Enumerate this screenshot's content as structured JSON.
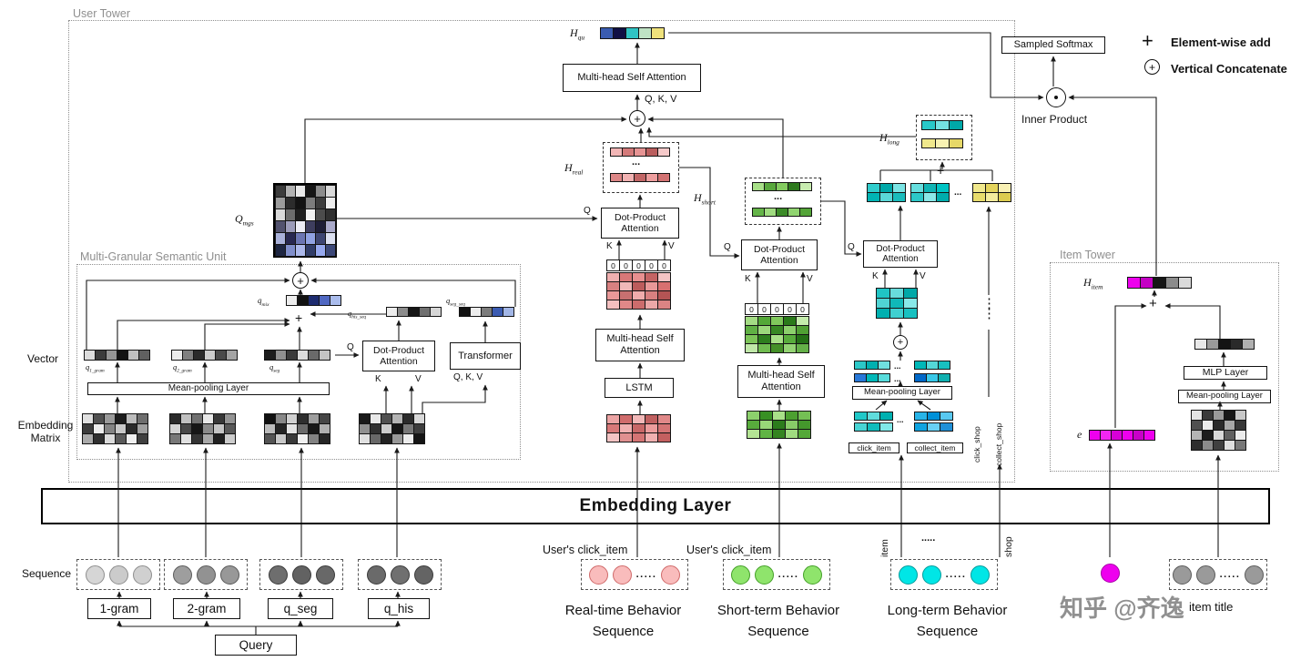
{
  "watermark": "知乎 @齐逸",
  "legend": {
    "plus": "+",
    "oplus": "+",
    "element_wise_add": "Element-wise add",
    "vertical_concatenate": "Vertical Concatenate",
    "sampled_softmax": "Sampled Softmax",
    "inner_product": "Inner Product"
  },
  "towers": {
    "user": "User Tower",
    "item": "Item Tower",
    "mgs": "Multi-Granular Semantic Unit"
  },
  "embedding_layer": "Embedding Layer",
  "side": {
    "vector": "Vector",
    "embedding": "Embedding",
    "matrix": "Matrix",
    "sequence": "Sequence"
  },
  "letters": {
    "q": "Q",
    "k": "K",
    "v": "V",
    "qkv": "Q, K, V"
  },
  "boxes": {
    "dpa": "Dot-Product Attention",
    "msa": "Multi-head Self Attention",
    "mp": "Mean-pooling Layer",
    "lstm": "LSTM",
    "transformer": "Transformer",
    "mlp": "MLP Layer"
  },
  "dots": {
    "h3": "...",
    "h5": ".....",
    "v": "⋮",
    "v2": "⋮\n⋮"
  },
  "zeros": [
    [
      {
        "t": "0"
      },
      {
        "t": "0"
      },
      {
        "t": "0"
      },
      {
        "t": "0"
      },
      {
        "t": "0"
      }
    ]
  ],
  "shared": {
    "users_click_item": "User's click_item"
  },
  "top": {
    "h_qu": {
      "m": "H",
      "s": "qu"
    },
    "cells": [
      [
        "#3a5cb0",
        "#101044",
        "#30c4c4",
        "#bfe2c4",
        "#efe27c"
      ]
    ]
  },
  "mgs": {
    "q_mgs": {
      "m": "Q",
      "s": "mgs"
    },
    "q_mix": {
      "m": "q",
      "s": "mix"
    },
    "q_his_seq": {
      "m": "q",
      "s": "his_seq"
    },
    "q_seg_seq": {
      "m": "q",
      "s": "seg_seq"
    },
    "q_1_gram": {
      "m": "q",
      "s": "1_gram"
    },
    "q_2_gram": {
      "m": "q",
      "s": "2_gram"
    },
    "q_seg_lbl": {
      "m": "q",
      "s": "seg"
    },
    "q_mgs_cells": [
      [
        "#3c3c3c",
        "#b2b2b2",
        "#e9e9e9",
        "#161616",
        "#8c8c8c",
        "#dadada"
      ],
      [
        "#9c9c9c",
        "#2c2c2c",
        "#121212",
        "#7c7c7c",
        "#3c3c3c",
        "#eeeeee"
      ],
      [
        "#dadada",
        "#6c6c6c",
        "#1e1e1e",
        "#f1f1f1",
        "#4c4c4c",
        "#303030"
      ],
      [
        "#52526e",
        "#9c9cba",
        "#ededf5",
        "#3e3e5e",
        "#1e1e36",
        "#aaaaca"
      ],
      [
        "#aab2da",
        "#282850",
        "#6c76b2",
        "#90a2e2",
        "#3e4672",
        "#dde1f1"
      ],
      [
        "#1e2642",
        "#808eca",
        "#acb8ea",
        "#303c68",
        "#96a8ee",
        "#3c4878"
      ]
    ],
    "qmix_cells": [
      [
        "#ededed",
        "#121212",
        "#1e2c70",
        "#5068c2",
        "#aabcec"
      ]
    ],
    "qhis_seq_cells": [
      [
        "#ededed",
        "#8c8c8c",
        "#161616",
        "#707070",
        "#d6d6d6"
      ]
    ],
    "qseg_seq_cells": [
      [
        "#121212",
        "#ededed",
        "#7c7c7c",
        "#3c5cb2",
        "#a2b6e6"
      ]
    ],
    "q1_cells": [
      [
        "#dcdcdc",
        "#3c3c3c",
        "#969696",
        "#141414",
        "#c0c0c0",
        "#606060"
      ]
    ],
    "q2_cells": [
      [
        "#ececec",
        "#808080",
        "#2a2a2a",
        "#cccccc",
        "#4a4a4a",
        "#a4a4a4"
      ]
    ],
    "qseg_cells": [
      [
        "#1c1c1c",
        "#909090",
        "#3a3a3a",
        "#dcdcdc",
        "#6a6a6a",
        "#c4c4c4"
      ]
    ],
    "m1": [
      [
        "#e0e0e0",
        "#505050",
        "#9a9a9a",
        "#1c1c1c",
        "#bcbcbc",
        "#6e6e6e"
      ],
      [
        "#3c3c3c",
        "#ececec",
        "#848484",
        "#c8c8c8",
        "#2a2a2a",
        "#a0a0a0"
      ],
      [
        "#aaaaaa",
        "#303030",
        "#dcdcdc",
        "#5a5a5a",
        "#f0f0f0",
        "#404040"
      ]
    ],
    "m2": [
      [
        "#2a2a2a",
        "#c0c0c0",
        "#707070",
        "#e8e8e8",
        "#383838",
        "#949494"
      ],
      [
        "#d4d4d4",
        "#484848",
        "#161616",
        "#8a8a8a",
        "#c4c4c4",
        "#585858"
      ],
      [
        "#787878",
        "#e0e0e0",
        "#343434",
        "#a8a8a8",
        "#202020",
        "#cccccc"
      ]
    ],
    "m3": [
      [
        "#111111",
        "#888888",
        "#d0d0d0",
        "#2e2e2e",
        "#9e9e9e",
        "#464646"
      ],
      [
        "#bcbcbc",
        "#242424",
        "#e4e4e4",
        "#6a6a6a",
        "#181818",
        "#b0b0b0"
      ],
      [
        "#545454",
        "#c8c8c8",
        "#3a3a3a",
        "#f0f0f0",
        "#828282",
        "#262626"
      ]
    ],
    "m4": [
      [
        "#1a1a1a",
        "#e8e8e8",
        "#505050",
        "#b4b4b4",
        "#2c2c2c",
        "#d8d8d8"
      ],
      [
        "#909090",
        "#303030",
        "#cccccc",
        "#161616",
        "#787878",
        "#3e3e3e"
      ],
      [
        "#e0e0e0",
        "#686868",
        "#222222",
        "#989898",
        "#ececec",
        "#141414"
      ]
    ]
  },
  "real": {
    "h": {
      "m": "H",
      "s": "real"
    },
    "cap1": "Real-time Behavior",
    "cap2": "Sequence",
    "h1": [
      [
        "#f2b6b6",
        "#d47a7a",
        "#e69494",
        "#ba5e5e",
        "#f6caca"
      ]
    ],
    "h2": [
      [
        "#dc8686",
        "#f2b2b2",
        "#c26666",
        "#ee9e9e",
        "#d27272"
      ]
    ],
    "m_top": [
      [
        "#f0b0b0",
        "#d87878",
        "#e89090",
        "#c46464",
        "#f4c4c4"
      ],
      [
        "#d88080",
        "#f0b8b8",
        "#bc5c5c",
        "#e89898",
        "#d87070"
      ],
      [
        "#e89898",
        "#c87070",
        "#f0acac",
        "#d88080",
        "#b45454"
      ],
      [
        "#f4c0c0",
        "#e08888",
        "#cc6c6c",
        "#eca8a8",
        "#dc8484"
      ]
    ],
    "m_bottom": [
      [
        "#eca4a4",
        "#d06c6c",
        "#f2b8b8",
        "#c06060",
        "#e08888"
      ],
      [
        "#d87878",
        "#f0b0b0",
        "#c86868",
        "#ec9c9c",
        "#d47474"
      ],
      [
        "#f4c4c4",
        "#e09090",
        "#d47474",
        "#f0b0b0",
        "#c46060"
      ]
    ],
    "circ": {
      "border": "#d06a6a",
      "items": [
        "#f9bcbc",
        "#f9bcbc",
        "dots",
        "#f9bcbc"
      ]
    }
  },
  "short": {
    "h": {
      "m": "H",
      "s": "short"
    },
    "cap1": "Short-term Behavior",
    "cap2": "Sequence",
    "h1": [
      [
        "#a8e088",
        "#58a83c",
        "#84cc60",
        "#2e7a1e",
        "#c8ecb0"
      ]
    ],
    "h2": [
      [
        "#64b448",
        "#a0dc80",
        "#3c8c28",
        "#90d470",
        "#54a438"
      ]
    ],
    "m_top": [
      [
        "#a4dc84",
        "#54a838",
        "#80c85c",
        "#2a7a1a",
        "#c4ecac"
      ],
      [
        "#60b044",
        "#9cd87c",
        "#388824",
        "#8cd06c",
        "#50a034"
      ],
      [
        "#7cc458",
        "#2e7e1e",
        "#a8e088",
        "#58ac3c",
        "#247016"
      ],
      [
        "#c0e8a8",
        "#70bc50",
        "#449028",
        "#94d474",
        "#64b048"
      ]
    ],
    "m_bottom": [
      [
        "#8cd06c",
        "#389024",
        "#a8e088",
        "#4ca030",
        "#74c054"
      ],
      [
        "#58ac3c",
        "#98d878",
        "#2c7c1c",
        "#88cc68",
        "#44982c"
      ],
      [
        "#b4e494",
        "#60b444",
        "#348420",
        "#a0dc80",
        "#54a838"
      ]
    ],
    "circ": {
      "border": "#44a028",
      "items": [
        "#8fe46c",
        "#8fe46c",
        "dots",
        "#8fe46c"
      ]
    }
  },
  "long": {
    "h": {
      "m": "H",
      "s": "long"
    },
    "cap1": "Long-term Behavior",
    "cap2": "Sequence",
    "click_item": "click_item",
    "collect_item": "collect_item",
    "click_shop": "click_shop",
    "collect_shop": "collect_shop",
    "item_rot": "item",
    "shop_rot": "shop",
    "h_cyan": [
      [
        "#28c8c8",
        "#74e2e2",
        "#00a8a8"
      ]
    ],
    "h_yellow": [
      [
        "#f0e88c",
        "#f8f2b2",
        "#e6d868"
      ]
    ],
    "pairA": [
      [
        "#30cccc",
        "#00a8a8",
        "#7ae4e4"
      ],
      [
        "#00b4b4",
        "#5ad8d8",
        "#1abcbc"
      ]
    ],
    "pairB": [
      [
        "#66dede",
        "#10b4b4",
        "#00c4c4"
      ],
      [
        "#2cc8c8",
        "#8ae8e8",
        "#00acac"
      ]
    ],
    "yellow2": [
      [
        "#f0e88c",
        "#e4d45c",
        "#f8f0b4"
      ],
      [
        "#e8dc6c",
        "#f4ec9c",
        "#dccc50"
      ]
    ],
    "m": [
      [
        "#20c4c4",
        "#68dcdc",
        "#00a8a8"
      ],
      [
        "#50d4d4",
        "#10b8b8",
        "#88e8e8"
      ],
      [
        "#00b0b0",
        "#40d0d0",
        "#18c0c0"
      ]
    ],
    "r1l": [
      [
        "#2cc8c8",
        "#00b0b0",
        "#70e0e0"
      ]
    ],
    "r1r": [
      [
        "#00b8b8",
        "#54d8d8",
        "#18c0c0"
      ]
    ],
    "r2l": [
      [
        "#2878d8",
        "#00b8b8",
        "#58dcdc"
      ]
    ],
    "r2r": [
      [
        "#0068c8",
        "#38c8e8",
        "#10b0b0"
      ]
    ],
    "cl1": [
      [
        "#20c8c8",
        "#60dcdc",
        "#00b0b0"
      ]
    ],
    "cl2": [
      [
        "#48d4d4",
        "#10bcbc",
        "#80e8e8"
      ]
    ],
    "co1": [
      [
        "#28b4e8",
        "#0090d8",
        "#58c8f0"
      ]
    ],
    "co2": [
      [
        "#10a4e0",
        "#68d0f4",
        "#2090d8"
      ]
    ],
    "circ": {
      "border": "#009c9c",
      "items": [
        "#00e6e6",
        "#00e6e6",
        "dots",
        "#00e6e6"
      ]
    }
  },
  "item": {
    "h": {
      "m": "H",
      "s": "item"
    },
    "e": "e",
    "item_title": "item title",
    "h_cells": [
      [
        "#ee00ee",
        "#c400c4",
        "#161616",
        "#8c8c8c",
        "#dadada"
      ]
    ],
    "vec": [
      [
        "#e8e8e8",
        "#9a9a9a",
        "#141414",
        "#2a2a2a",
        "#b0b0b0"
      ]
    ],
    "e_cells": [
      [
        "#ee00ee",
        "#f226f2",
        "#d800d8",
        "#ee00ee",
        "#c800c8",
        "#ee00ee"
      ]
    ],
    "m": [
      [
        "#e4e4e4",
        "#3a3a3a",
        "#9a9a9a",
        "#181818",
        "#c8c8c8"
      ],
      [
        "#505050",
        "#ececec",
        "#2a2a2a",
        "#a8a8a8",
        "#383838"
      ],
      [
        "#b4b4b4",
        "#1c1c1c",
        "#d8d8d8",
        "#606060",
        "#ececec"
      ],
      [
        "#2e2e2e",
        "#8c8c8c",
        "#404040",
        "#e0e0e0",
        "#787878"
      ]
    ],
    "circ1": {
      "border": "#a800a8",
      "items": [
        "#ee00ee"
      ]
    },
    "circ": {
      "border": "#5a5a5a",
      "items": [
        "#9a9a9a",
        "#9a9a9a",
        "dots",
        "#9a9a9a"
      ]
    }
  },
  "bottom": {
    "gram1": "1-gram",
    "gram2": "2-gram",
    "qseg": "q_seg",
    "qhis": "q_his",
    "query": "Query",
    "g1": {
      "border": "#8e8e8e",
      "items": [
        "#d6d6d6",
        "#cbcbcb",
        "#d0d0d0"
      ]
    },
    "g2": {
      "border": "#5a5a5a",
      "items": [
        "#9e9e9e",
        "#929292",
        "#989898"
      ]
    },
    "g3": {
      "border": "#3a3a3a",
      "items": [
        "#6e6e6e",
        "#626262",
        "#686868"
      ]
    },
    "g4": {
      "border": "#3a3a3a",
      "items": [
        "#6a6a6a",
        "#707070",
        "#646464"
      ]
    }
  }
}
